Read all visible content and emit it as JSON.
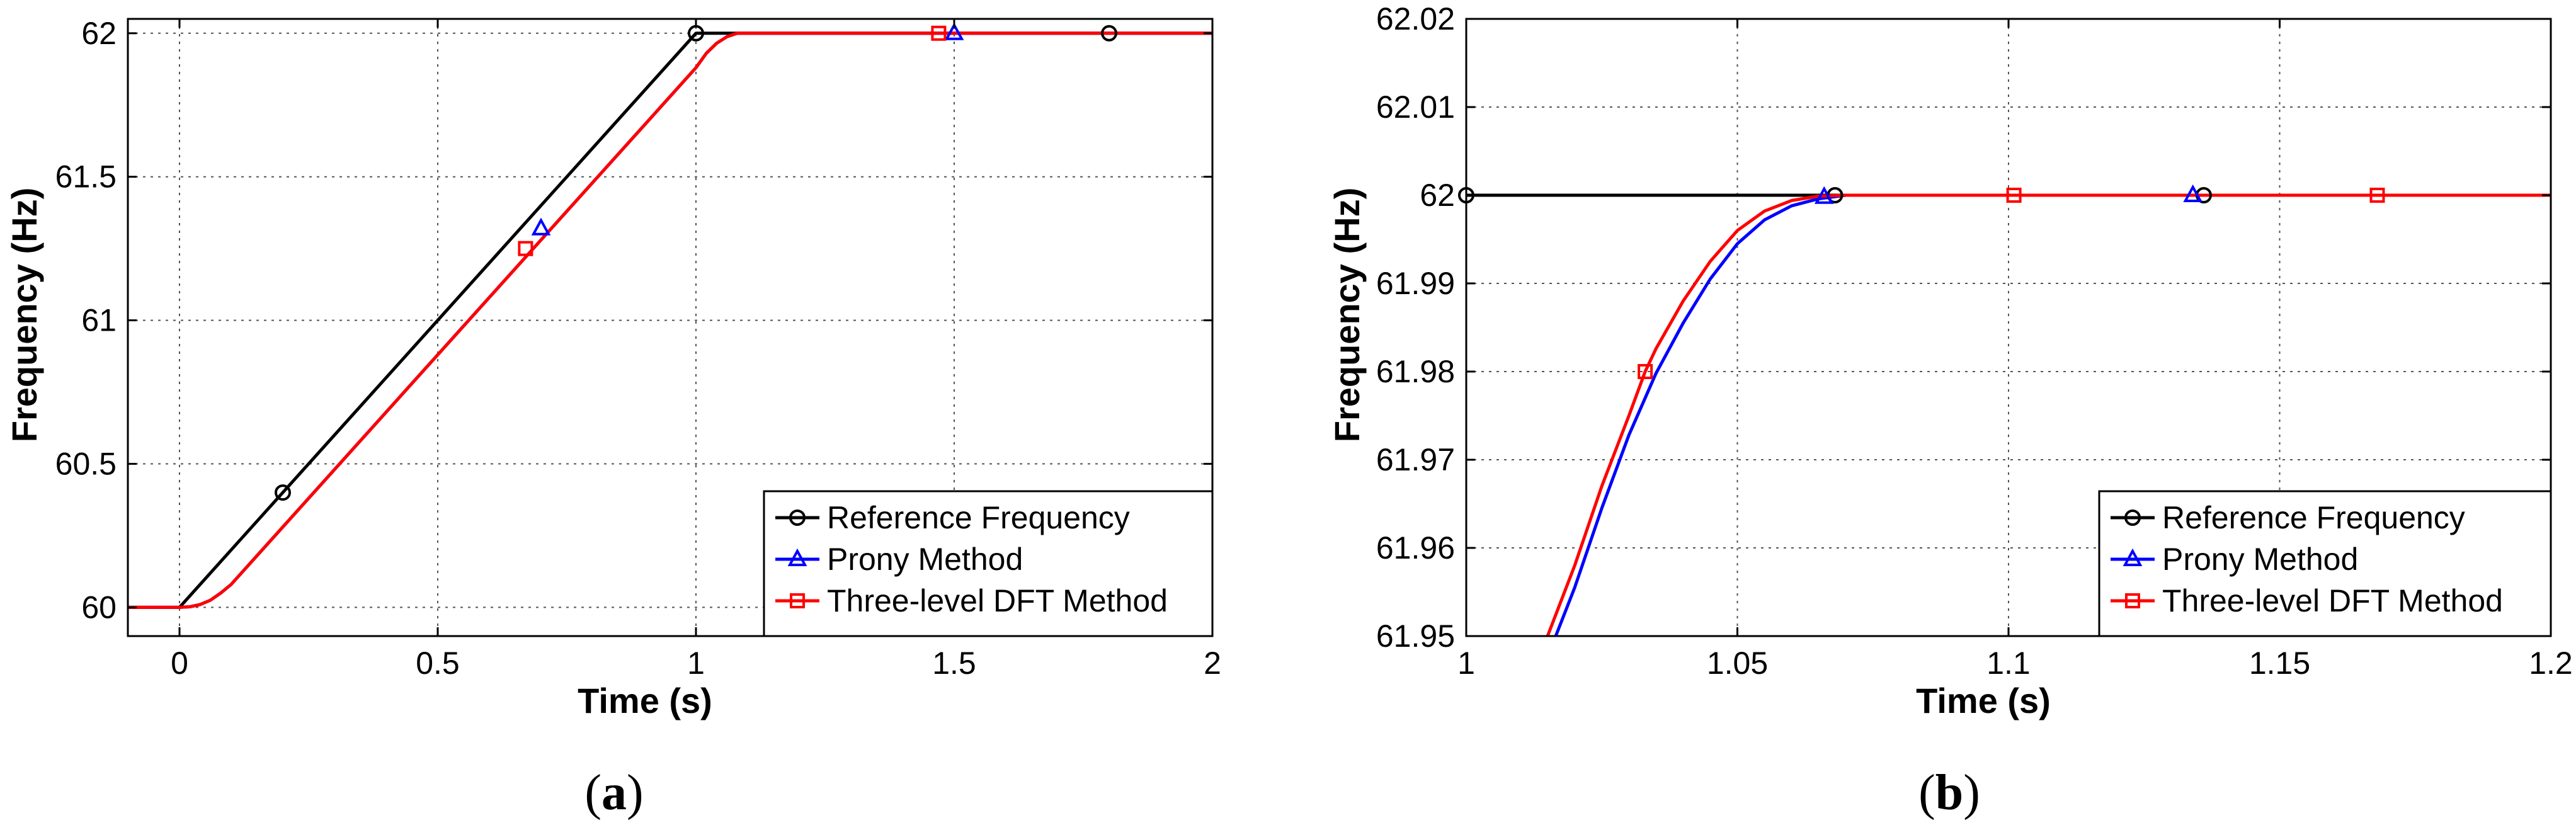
{
  "chart_data": [
    {
      "type": "line",
      "panel_label": "a",
      "title": "",
      "xlabel": "Time (s)",
      "ylabel": "Frequency (Hz)",
      "xlim": [
        -0.1,
        2
      ],
      "ylim": [
        59.9,
        62.05
      ],
      "xticks": [
        0,
        0.5,
        1,
        1.5,
        2
      ],
      "xtick_labels": [
        "0",
        "0.5",
        "1",
        "1.5",
        "2"
      ],
      "yticks": [
        60,
        60.5,
        61,
        61.5,
        62
      ],
      "ytick_labels": [
        "60",
        "60.5",
        "61",
        "61.5",
        "62"
      ],
      "grid": true,
      "legend_position": "bottom-right",
      "series": [
        {
          "name": "Reference Frequency",
          "color": "#000000",
          "marker": "circle",
          "x": [
            -0.1,
            0,
            1,
            2
          ],
          "y": [
            60,
            60,
            62,
            62
          ],
          "markers_x": [
            0.2,
            1.0,
            1.8
          ],
          "markers_y": [
            60.4,
            62,
            62
          ]
        },
        {
          "name": "Prony Method",
          "color": "#0000ff",
          "marker": "triangle",
          "x": [
            -0.1,
            0,
            0.02,
            0.04,
            0.06,
            0.08,
            0.1,
            1.0,
            1.02,
            1.04,
            1.06,
            1.08,
            2
          ],
          "y": [
            60,
            60,
            60.002,
            60.01,
            60.025,
            60.05,
            60.08,
            61.88,
            61.93,
            61.965,
            61.988,
            62,
            62
          ],
          "markers_x": [
            0.7,
            1.5
          ],
          "markers_y": [
            61.32,
            62
          ]
        },
        {
          "name": "Three-level DFT Method",
          "color": "#ff0000",
          "marker": "square",
          "x": [
            -0.1,
            0,
            0.02,
            0.04,
            0.06,
            0.08,
            0.1,
            1.0,
            1.02,
            1.04,
            1.06,
            1.08,
            2
          ],
          "y": [
            60,
            60,
            60.002,
            60.01,
            60.025,
            60.05,
            60.08,
            61.88,
            61.93,
            61.965,
            61.988,
            62,
            62
          ],
          "markers_x": [
            0.67,
            1.47
          ],
          "markers_y": [
            61.25,
            62
          ]
        }
      ]
    },
    {
      "type": "line",
      "panel_label": "b",
      "title": "",
      "xlabel": "Time (s)",
      "ylabel": "Frequency (Hz)",
      "xlim": [
        1,
        1.2
      ],
      "ylim": [
        61.95,
        62.02
      ],
      "xticks": [
        1,
        1.05,
        1.1,
        1.15,
        1.2
      ],
      "xtick_labels": [
        "1",
        "1.05",
        "1.1",
        "1.15",
        "1.2"
      ],
      "yticks": [
        61.95,
        61.96,
        61.97,
        61.98,
        61.99,
        62,
        62.01,
        62.02
      ],
      "ytick_labels": [
        "61.95",
        "61.96",
        "61.97",
        "61.98",
        "61.99",
        "62",
        "62.01",
        "62.02"
      ],
      "grid": true,
      "legend_position": "bottom-right",
      "series": [
        {
          "name": "Reference Frequency",
          "color": "#000000",
          "marker": "circle",
          "x": [
            1,
            1.068,
            1.2
          ],
          "y": [
            62,
            62,
            62
          ],
          "markers_x": [
            1.0,
            1.068,
            1.136
          ],
          "markers_y": [
            62,
            62,
            62
          ]
        },
        {
          "name": "Prony Method",
          "color": "#0000ff",
          "marker": "triangle",
          "x": [
            1.0165,
            1.02,
            1.025,
            1.03,
            1.035,
            1.04,
            1.045,
            1.05,
            1.055,
            1.06,
            1.065,
            1.07,
            1.075,
            1.2
          ],
          "y": [
            61.95,
            61.9555,
            61.9645,
            61.9728,
            61.9798,
            61.9855,
            61.9905,
            61.9945,
            61.9972,
            61.9988,
            61.9996,
            62,
            62,
            62
          ],
          "markers_x": [
            1.066,
            1.134
          ],
          "markers_y": [
            61.9998,
            62
          ]
        },
        {
          "name": "Three-level DFT Method",
          "color": "#ff0000",
          "marker": "square",
          "x": [
            1.015,
            1.02,
            1.025,
            1.03,
            1.033,
            1.035,
            1.04,
            1.045,
            1.05,
            1.055,
            1.06,
            1.065,
            1.07,
            1.2
          ],
          "y": [
            61.95,
            61.958,
            61.967,
            61.975,
            61.98,
            61.9826,
            61.988,
            61.9925,
            61.996,
            61.9982,
            61.9994,
            61.9999,
            62,
            62
          ],
          "markers_x": [
            1.033,
            1.101,
            1.168
          ],
          "markers_y": [
            61.98,
            62,
            62
          ]
        }
      ]
    }
  ]
}
